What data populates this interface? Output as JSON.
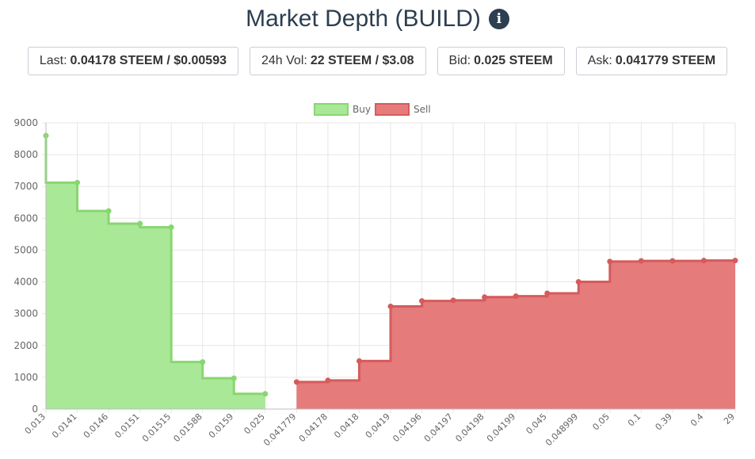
{
  "header": {
    "title": "Market Depth (BUILD)",
    "info_icon": "info-circle-icon"
  },
  "stats": [
    {
      "label": "Last:",
      "value": "0.04178 STEEM / $0.00593"
    },
    {
      "label": "24h Vol:",
      "value": "22 STEEM / $3.08"
    },
    {
      "label": "Bid:",
      "value": "0.025 STEEM"
    },
    {
      "label": "Ask:",
      "value": "0.041779 STEEM"
    }
  ],
  "chart_data": {
    "type": "area",
    "categories": [
      "0.013",
      "0.0141",
      "0.0146",
      "0.0151",
      "0.01515",
      "0.01588",
      "0.0159",
      "0.025",
      "0.041779",
      "0.04178",
      "0.0418",
      "0.0419",
      "0.04196",
      "0.04197",
      "0.04198",
      "0.04199",
      "0.045",
      "0.048999",
      "0.05",
      "0.1",
      "0.39",
      "0.4",
      "29"
    ],
    "ylim": [
      0,
      9000
    ],
    "yticks": [
      "0",
      "1000",
      "2000",
      "3000",
      "4000",
      "5000",
      "6000",
      "7000",
      "8000",
      "9000"
    ],
    "grid": true,
    "legend_position": "top",
    "series": [
      {
        "name": "Buy",
        "color": "#a8e896",
        "line_color": "#88d671",
        "values": [
          8600,
          7120,
          6230,
          5830,
          5720,
          1480,
          970,
          480,
          null,
          null,
          null,
          null,
          null,
          null,
          null,
          null,
          null,
          null,
          null,
          null,
          null,
          null,
          null
        ]
      },
      {
        "name": "Sell",
        "color": "#e57b7b",
        "line_color": "#d65b5b",
        "values": [
          null,
          null,
          null,
          null,
          null,
          null,
          null,
          null,
          850,
          900,
          1510,
          3230,
          3400,
          3420,
          3520,
          3550,
          3640,
          4000,
          4640,
          4660,
          4660,
          4670,
          4670
        ]
      }
    ]
  }
}
